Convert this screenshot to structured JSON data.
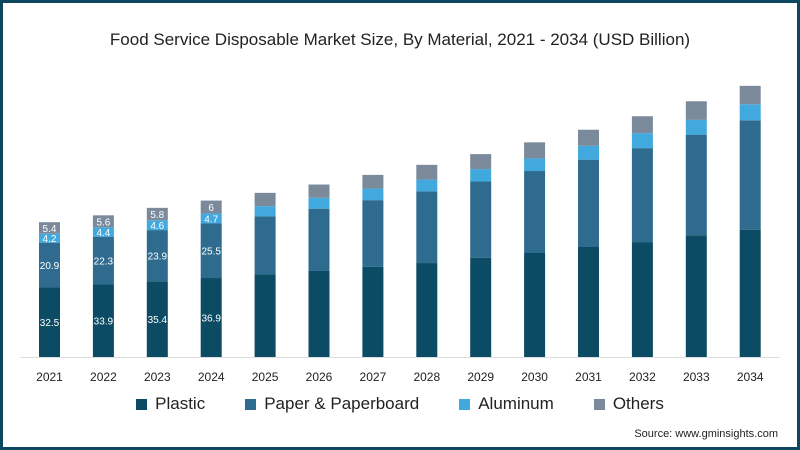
{
  "chart_data": {
    "type": "bar",
    "stacked": true,
    "title": "Food Service Disposable Market Size, By Material, 2021 - 2034 (USD Billion)",
    "xlabel": "",
    "ylabel": "",
    "ylim": [
      0,
      140
    ],
    "grid": false,
    "legend_position": "bottom",
    "categories": [
      "2021",
      "2022",
      "2023",
      "2024",
      "2025",
      "2026",
      "2027",
      "2028",
      "2029",
      "2030",
      "2031",
      "2032",
      "2033",
      "2034"
    ],
    "series": [
      {
        "name": "Plastic",
        "color": "#0b4b63",
        "values": [
          32.5,
          33.9,
          35.4,
          36.9,
          38.6,
          40.2,
          42.1,
          43.9,
          46.3,
          48.6,
          51.4,
          53.7,
          56.9,
          59.5
        ],
        "labeled_count": 4
      },
      {
        "name": "Paper & Paperboard",
        "color": "#2e6b8e",
        "values": [
          20.9,
          22.3,
          23.9,
          25.5,
          27.1,
          29.1,
          31.2,
          33.5,
          35.7,
          38.3,
          40.8,
          43.9,
          47.0,
          51.1
        ],
        "labeled_count": 4
      },
      {
        "name": "Aluminum",
        "color": "#41a9dd",
        "values": [
          4.2,
          4.4,
          4.6,
          4.7,
          4.8,
          5.1,
          5.4,
          5.5,
          5.8,
          5.9,
          6.5,
          7.0,
          6.9,
          7.5
        ],
        "labeled_count": 4
      },
      {
        "name": "Others",
        "color": "#7b8a9a",
        "values": [
          5.4,
          5.6,
          5.8,
          6,
          6.2,
          6.2,
          6.4,
          6.9,
          7.0,
          7.5,
          7.5,
          7.9,
          8.7,
          8.6
        ],
        "labeled_count": 4
      }
    ],
    "source": "Source: www.gminsights.com"
  }
}
